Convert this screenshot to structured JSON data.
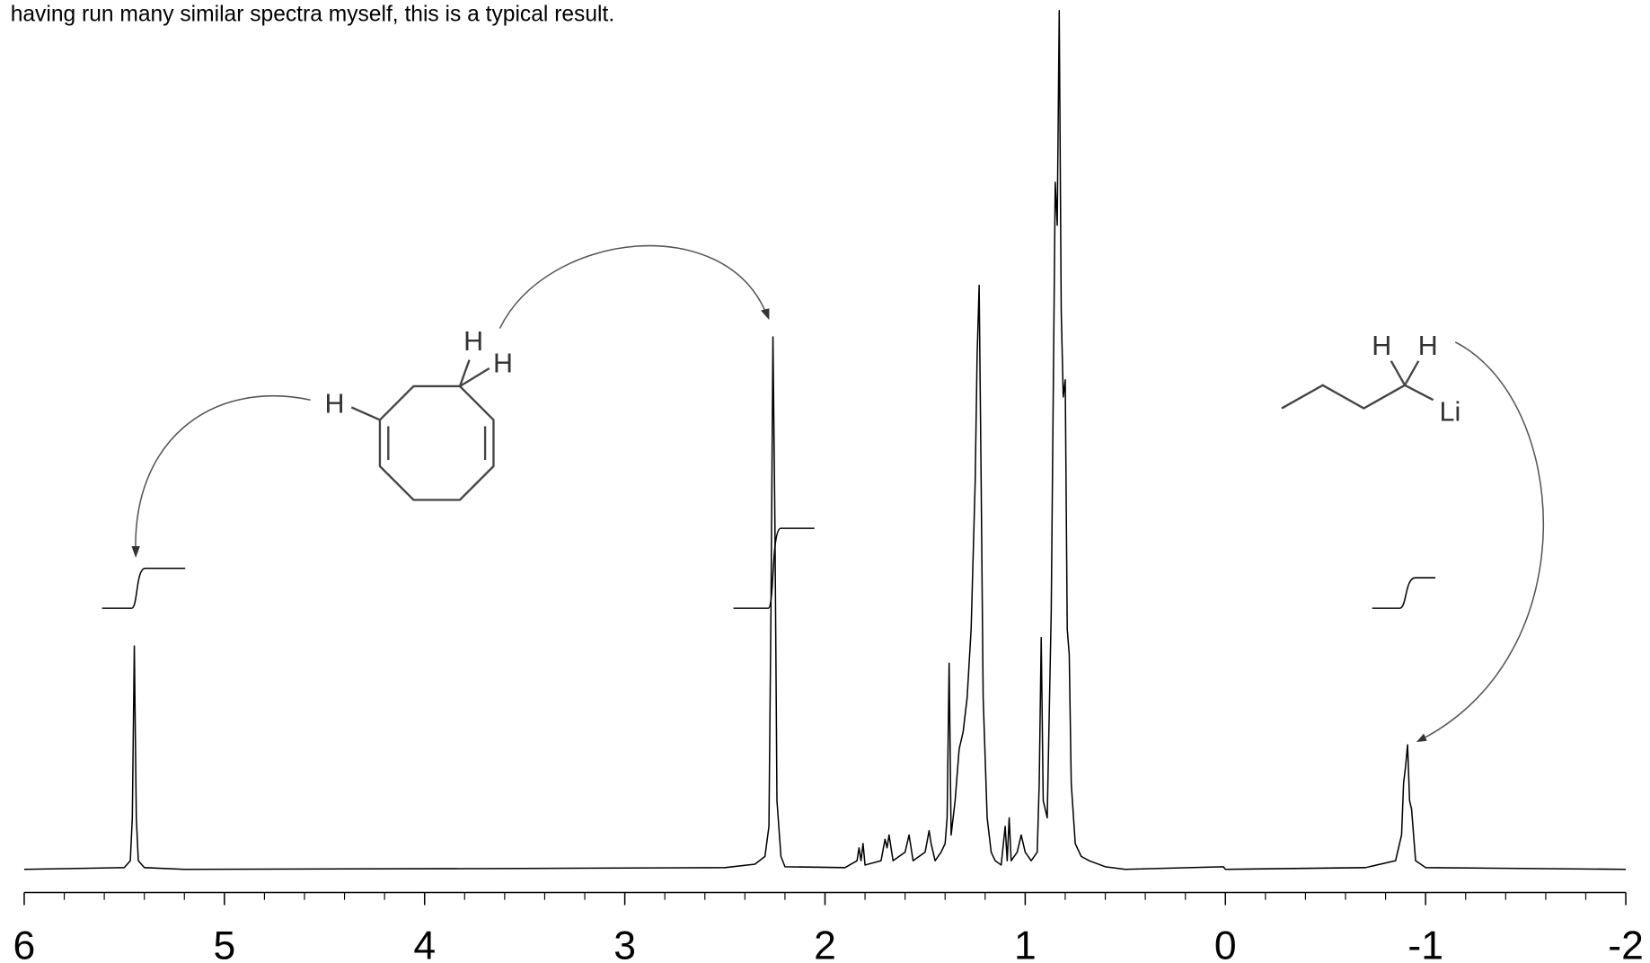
{
  "chart_data": {
    "type": "line",
    "title": "having run many similar spectra myself, this is a typical result.",
    "annotations": [
      "H",
      "H",
      "H",
      "H",
      "H",
      "Li"
    ],
    "x": [
      6.0,
      5.5,
      5.47,
      5.46,
      5.45,
      5.44,
      5.43,
      5.4,
      5.2,
      3.5,
      2.5,
      2.35,
      2.3,
      2.28,
      2.27,
      2.26,
      2.25,
      2.24,
      2.22,
      2.2,
      1.9,
      1.84,
      1.83,
      1.82,
      1.81,
      1.8,
      1.72,
      1.7,
      1.69,
      1.68,
      1.66,
      1.6,
      1.58,
      1.56,
      1.5,
      1.48,
      1.47,
      1.45,
      1.42,
      1.4,
      1.39,
      1.38,
      1.37,
      1.35,
      1.33,
      1.31,
      1.29,
      1.27,
      1.25,
      1.24,
      1.23,
      1.22,
      1.21,
      1.19,
      1.17,
      1.15,
      1.12,
      1.1,
      1.09,
      1.08,
      1.07,
      1.04,
      1.02,
      1.0,
      0.97,
      0.94,
      0.93,
      0.92,
      0.91,
      0.89,
      0.87,
      0.86,
      0.85,
      0.84,
      0.83,
      0.82,
      0.81,
      0.8,
      0.79,
      0.78,
      0.77,
      0.75,
      0.72,
      0.68,
      0.6,
      0.5,
      0.01,
      0,
      -0.7,
      -0.85,
      -0.88,
      -0.89,
      -0.9,
      -0.91,
      -0.92,
      -0.93,
      -0.95,
      -1,
      -2
    ],
    "series": [
      {
        "color": "#000000",
        "values": [
          0,
          0.2,
          1,
          6,
          26,
          6,
          1,
          0.2,
          0,
          0.1,
          0.2,
          0.6,
          1.5,
          5,
          30,
          62,
          40,
          8,
          1.5,
          0.3,
          0.2,
          1,
          2.5,
          1,
          3,
          0.5,
          1,
          3.5,
          2.5,
          4,
          1,
          2,
          4,
          1,
          2,
          4.5,
          3,
          1,
          2,
          3,
          6,
          24,
          4,
          8,
          14,
          16,
          20,
          28,
          45,
          60,
          68,
          45,
          20,
          6,
          2,
          1,
          0.5,
          5,
          1,
          6,
          1,
          2,
          4,
          2,
          1,
          2,
          10,
          27,
          8,
          6,
          30,
          55,
          80,
          75,
          100,
          65,
          55,
          57,
          28,
          25,
          10,
          3,
          1.5,
          1,
          0.3,
          0,
          0.3,
          0,
          0.2,
          1,
          4,
          10,
          12,
          14.5,
          8,
          7,
          1,
          0.2,
          0
        ]
      }
    ],
    "xlim": [
      6,
      -2
    ],
    "ylim": [
      0,
      100
    ],
    "xticks": [
      6,
      5,
      4,
      3,
      2,
      1,
      0,
      -1,
      -2
    ],
    "xminorticks": [
      5.8,
      5.6,
      5.4,
      5.2,
      4.8,
      4.6,
      4.4,
      4.2,
      3.8,
      3.6,
      3.4,
      3.2,
      2.8,
      2.6,
      2.4,
      2.2,
      1.8,
      1.6,
      1.4,
      1.2,
      0.8,
      0.6,
      0.4,
      0.2,
      -0.2,
      -0.4,
      -0.6,
      -0.8,
      -1.2,
      -1.4,
      -1.6,
      -1.8
    ],
    "grid": false
  }
}
